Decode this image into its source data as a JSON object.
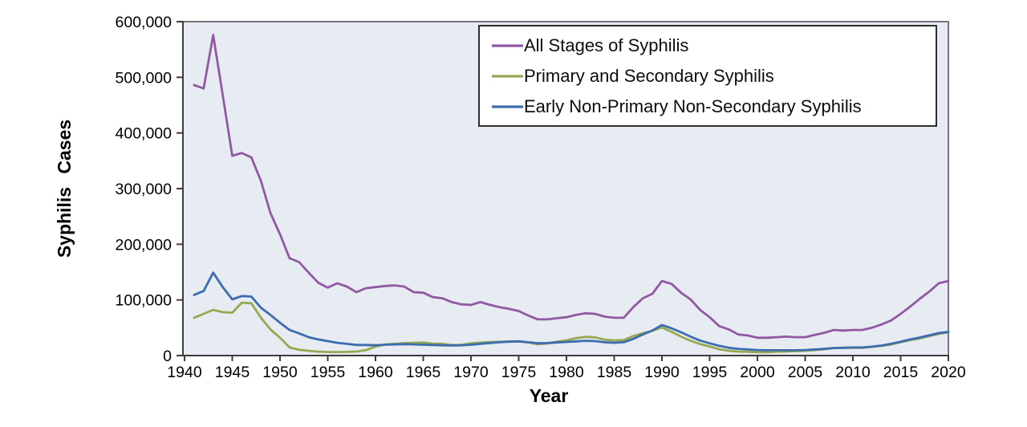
{
  "chart_data": {
    "type": "line",
    "xlabel": "Year",
    "ylabel": "Syphilis Cases",
    "xlim": [
      1940,
      2020
    ],
    "ylim": [
      0,
      600000
    ],
    "x_ticks": [
      1940,
      1945,
      1950,
      1955,
      1960,
      1965,
      1970,
      1975,
      1980,
      1985,
      1990,
      1995,
      2000,
      2005,
      2010,
      2015,
      2020
    ],
    "y_ticks": [
      0,
      100000,
      200000,
      300000,
      400000,
      500000,
      600000
    ],
    "grid": false,
    "legend_position": "top-right",
    "plot_background": "#e7ebf2",
    "plot_border_color": "#72767b",
    "axis_color": "#3d3d3d",
    "legend_border_color": "#2f2f2f",
    "legend_background": "#ffffff",
    "x": [
      1941,
      1942,
      1943,
      1944,
      1945,
      1946,
      1947,
      1948,
      1949,
      1950,
      1951,
      1952,
      1953,
      1954,
      1955,
      1956,
      1957,
      1958,
      1959,
      1960,
      1961,
      1962,
      1963,
      1964,
      1965,
      1966,
      1967,
      1968,
      1969,
      1970,
      1971,
      1972,
      1973,
      1974,
      1975,
      1976,
      1977,
      1978,
      1979,
      1980,
      1981,
      1982,
      1983,
      1984,
      1985,
      1986,
      1987,
      1988,
      1989,
      1990,
      1991,
      1992,
      1993,
      1994,
      1995,
      1996,
      1997,
      1998,
      1999,
      2000,
      2001,
      2002,
      2003,
      2004,
      2005,
      2006,
      2007,
      2008,
      2009,
      2010,
      2011,
      2012,
      2013,
      2014,
      2015,
      2016,
      2017,
      2018,
      2019,
      2020
    ],
    "series": [
      {
        "name": "All Stages of Syphilis",
        "color": "#9159a3",
        "values": [
          486000,
          480000,
          576000,
          468000,
          359000,
          364000,
          356000,
          314000,
          256000,
          218000,
          175000,
          168000,
          149000,
          131000,
          122000,
          130000,
          124000,
          114000,
          121000,
          123000,
          125000,
          126000,
          124000,
          114000,
          113000,
          105000,
          103000,
          96000,
          92000,
          91000,
          96000,
          91000,
          87000,
          84000,
          80000,
          72000,
          65000,
          65000,
          67000,
          69000,
          73000,
          76000,
          75000,
          70000,
          68000,
          68000,
          87000,
          103000,
          111000,
          134000,
          129000,
          113000,
          101000,
          82000,
          69000,
          53000,
          47000,
          38000,
          36000,
          32000,
          32000,
          33000,
          34000,
          33000,
          33000,
          37000,
          41000,
          46000,
          45000,
          46000,
          46000,
          50000,
          56000,
          63000,
          75000,
          88000,
          102000,
          115000,
          130000,
          134000
        ]
      },
      {
        "name": "Primary and Secondary Syphilis",
        "color": "#94a951",
        "values": [
          68000,
          75000,
          82000,
          78000,
          77000,
          95000,
          94000,
          68000,
          47000,
          32000,
          14500,
          10400,
          8600,
          7100,
          6500,
          6400,
          6600,
          7200,
          9800,
          16100,
          19900,
          21100,
          22300,
          23000,
          23300,
          21400,
          21100,
          19000,
          19100,
          22000,
          23300,
          24400,
          24800,
          25400,
          25600,
          23700,
          20400,
          21700,
          24900,
          27200,
          31300,
          33600,
          32700,
          28600,
          27100,
          27900,
          35100,
          40100,
          44500,
          50600,
          42900,
          34000,
          26500,
          20600,
          16500,
          11400,
          8600,
          7000,
          6600,
          6000,
          6100,
          6900,
          7200,
          8000,
          8700,
          9800,
          11500,
          13500,
          14000,
          13800,
          14000,
          15700,
          17400,
          20000,
          23900,
          27800,
          30600,
          35100,
          39000,
          41700
        ]
      },
      {
        "name": "Early Non-Primary Non-Secondary Syphilis",
        "color": "#3c6dae",
        "values": [
          109000,
          116000,
          149000,
          123000,
          101000,
          107000,
          106000,
          86000,
          73000,
          59000,
          46000,
          40000,
          33000,
          29000,
          26000,
          23000,
          21000,
          19000,
          19000,
          18500,
          19500,
          20000,
          20500,
          20000,
          19500,
          19000,
          18500,
          18000,
          18500,
          19500,
          21000,
          22500,
          24000,
          25000,
          25500,
          24000,
          22000,
          22500,
          23500,
          24500,
          25500,
          26500,
          26000,
          24000,
          23000,
          24000,
          30000,
          38000,
          45000,
          55000,
          49000,
          42000,
          34000,
          27000,
          22000,
          17500,
          14000,
          12000,
          11000,
          10000,
          9500,
          9500,
          9500,
          9500,
          10000,
          11000,
          12000,
          13500,
          14000,
          14500,
          14500,
          16000,
          18000,
          21000,
          25000,
          29000,
          32500,
          36500,
          40500,
          42500
        ]
      }
    ]
  }
}
